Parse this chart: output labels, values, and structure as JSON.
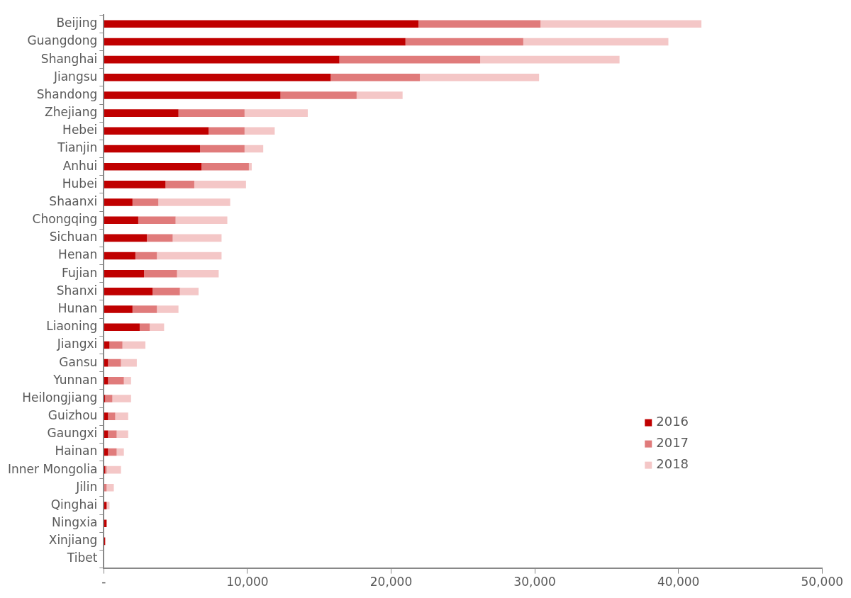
{
  "chart_data": {
    "type": "bar",
    "orientation": "horizontal",
    "stacked": true,
    "grid": false,
    "legend": "bottom right",
    "categories": [
      "Beijing",
      "Guangdong",
      "Shanghai",
      "Jiangsu",
      "Shandong",
      "Zhejiang",
      "Hebei",
      "Tianjin",
      "Anhui",
      "Hubei",
      "Shaanxi",
      "Chongqing",
      "Sichuan",
      "Henan",
      "Fujian",
      "Shanxi",
      "Hunan",
      "Liaoning",
      "Jiangxi",
      "Gansu",
      "Yunnan",
      "Heilongjiang",
      "Guizhou",
      "Gaungxi",
      "Hainan",
      "Inner Mongolia",
      "Jilin",
      "Qinghai",
      "Ningxia",
      "Xinjiang",
      "Tibet"
    ],
    "xlim": [
      0,
      50000
    ],
    "xticks": [
      {
        "value": 0,
        "label": "-"
      },
      {
        "value": 10000,
        "label": "10,000"
      },
      {
        "value": 20000,
        "label": "20,000"
      },
      {
        "value": 30000,
        "label": "30,000"
      },
      {
        "value": 40000,
        "label": "40,000"
      },
      {
        "value": 50000,
        "label": "50,000"
      }
    ],
    "series": [
      {
        "name": "2016",
        "color": "#c00000",
        "values": [
          21900,
          21000,
          16400,
          15800,
          12300,
          5200,
          7300,
          6700,
          6800,
          4300,
          2000,
          2400,
          3000,
          2200,
          2800,
          3400,
          2000,
          2500,
          400,
          300,
          300,
          100,
          300,
          300,
          300,
          100,
          0,
          200,
          200,
          100,
          0
        ]
      },
      {
        "name": "2017",
        "color": "#e07b7b",
        "values": [
          8500,
          8200,
          9800,
          6200,
          5300,
          4600,
          2500,
          3100,
          3300,
          2000,
          1800,
          2600,
          1800,
          1500,
          2300,
          1900,
          1700,
          700,
          900,
          900,
          1100,
          500,
          500,
          600,
          600,
          100,
          200,
          0,
          0,
          0,
          0
        ]
      },
      {
        "name": "2018",
        "color": "#f4c7c7",
        "values": [
          11200,
          10100,
          9700,
          8300,
          3200,
          4400,
          2100,
          1300,
          200,
          3600,
          5000,
          3600,
          3400,
          4500,
          2900,
          1300,
          1500,
          1000,
          1600,
          1100,
          500,
          1300,
          900,
          800,
          500,
          1000,
          500,
          200,
          0,
          0,
          0
        ]
      }
    ]
  }
}
